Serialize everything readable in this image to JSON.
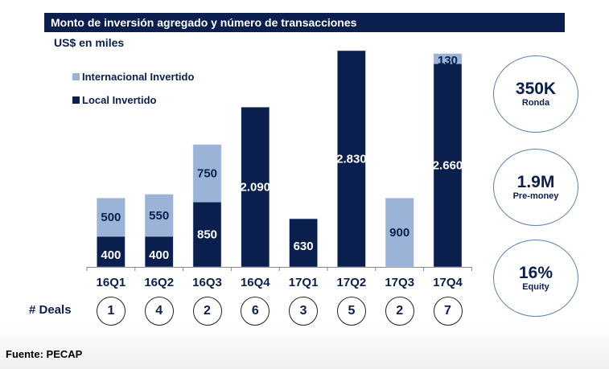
{
  "title": "Monto de inversión agregado y número de transacciones",
  "unit_label": "US$ en miles",
  "legend": [
    {
      "label": "Internacional Invertido",
      "color": "#9bb3d6"
    },
    {
      "label": "Local Invertido",
      "color": "#0a1f4e"
    }
  ],
  "deals": {
    "label": "# Deals",
    "values": [
      "1",
      "4",
      "2",
      "6",
      "3",
      "5",
      "2",
      "7"
    ]
  },
  "kpis": [
    {
      "value": "350K",
      "label": "Ronda"
    },
    {
      "value": "1.9M",
      "label": "Pre-money"
    },
    {
      "value": "16%",
      "label": "Equity"
    }
  ],
  "source": "Fuente: PECAP",
  "chart_data": {
    "type": "bar",
    "stacked": true,
    "title": "Monto de inversión agregado y número de transacciones",
    "ylabel": "US$ en miles",
    "xlabel": "",
    "categories": [
      "16Q1",
      "16Q2",
      "16Q3",
      "16Q4",
      "17Q1",
      "17Q2",
      "17Q3",
      "17Q4"
    ],
    "series": [
      {
        "name": "Local Invertido",
        "color": "#0a1f4e",
        "values": [
          400,
          400,
          850,
          2090,
          630,
          2830,
          0,
          2660
        ],
        "labels": [
          "400",
          "400",
          "850",
          "2.090",
          "630",
          "2.830",
          "",
          "2.660"
        ]
      },
      {
        "name": "Internacional Invertido",
        "color": "#9bb3d6",
        "values": [
          500,
          550,
          750,
          0,
          0,
          0,
          900,
          130
        ],
        "labels": [
          "500",
          "550",
          "750",
          "",
          "",
          "",
          "900",
          "130"
        ]
      }
    ],
    "ylim": [
      0,
      2900
    ],
    "grid": false,
    "legend_position": "top-left"
  }
}
